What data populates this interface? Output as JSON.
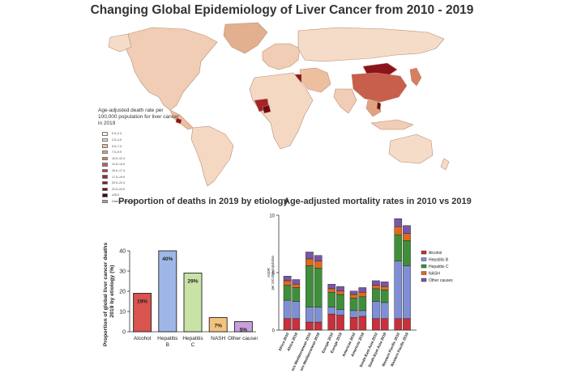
{
  "title": "Changing Global Epidemiology of Liver Cancer from 2010 - 2019",
  "map": {
    "legend_title": "Age-adjusted death rate per 100,000 population for liver cancer in 2019",
    "legend": [
      {
        "label": "0.0–2.4",
        "color": "#fbeee4"
      },
      {
        "label": "2.5–4.9",
        "color": "#f5d8c2"
      },
      {
        "label": "5.0–7.4",
        "color": "#eebf9f"
      },
      {
        "label": "7.5–9.9",
        "color": "#e3a27f"
      },
      {
        "label": "10.0–12.4",
        "color": "#d77f63"
      },
      {
        "label": "12.5–14.9",
        "color": "#c85e4c"
      },
      {
        "label": "15.0–17.4",
        "color": "#b83c38"
      },
      {
        "label": "17.5–19.9",
        "color": "#a32527"
      },
      {
        "label": "20.0–22.4",
        "color": "#8b141b"
      },
      {
        "label": "22.5–24.9",
        "color": "#6f0c12"
      },
      {
        "label": "≥25.0",
        "color": "#4a050a"
      },
      {
        "label": "Data not available",
        "color": "#9ea89c"
      }
    ]
  },
  "panel_titles": {
    "bar": "Proportion of deaths in 2019 by etiology",
    "stack": "Age-adjusted mortality rates in 2010 vs 2019"
  },
  "chart_data": [
    {
      "type": "bar",
      "categories": [
        "Alcohol",
        "Hepatitis B",
        "Hepatitis C",
        "NASH",
        "Other causes"
      ],
      "values": [
        19,
        40,
        29,
        7,
        5
      ],
      "value_labels": [
        "19%",
        "40%",
        "29%",
        "7%",
        "5%"
      ],
      "colors": [
        "#d9534f",
        "#9fb7e8",
        "#c8e3a5",
        "#f2c37e",
        "#c99fdc"
      ],
      "ylabel": "Proportion of global liver cancer deaths in 2019 by etiology (%)",
      "ylim": [
        0,
        40
      ],
      "yticks": [
        0,
        10,
        20,
        30,
        40
      ],
      "grid": false
    },
    {
      "type": "bar",
      "stacked": true,
      "categories": [
        "Africa 2010",
        "Africa 2019",
        "Eastern Mediterranean 2010",
        "Eastern Mediterranean 2019",
        "Europe 2010",
        "Europe 2019",
        "Americas 2010",
        "Americas 2019",
        "South-East Asia 2010",
        "South-East Asia 2019",
        "Western Pacific 2010",
        "Western Pacific 2019"
      ],
      "series": [
        {
          "name": "Alcohol",
          "color": "#c8303a",
          "values": [
            1.0,
            1.0,
            0.7,
            0.7,
            1.4,
            1.3,
            1.1,
            1.2,
            1.0,
            1.0,
            1.0,
            1.0
          ]
        },
        {
          "name": "Hepatitis B",
          "color": "#7f8fd6",
          "values": [
            1.6,
            1.5,
            1.3,
            1.3,
            0.6,
            0.5,
            0.6,
            0.5,
            1.5,
            1.4,
            5.0,
            4.6
          ]
        },
        {
          "name": "Hepatitis C",
          "color": "#3f8f3a",
          "values": [
            1.3,
            1.2,
            3.6,
            3.4,
            1.3,
            1.3,
            1.1,
            1.2,
            1.1,
            1.1,
            2.3,
            2.2
          ]
        },
        {
          "name": "NASH",
          "color": "#e06a1c",
          "values": [
            0.4,
            0.3,
            0.6,
            0.6,
            0.3,
            0.3,
            0.3,
            0.4,
            0.3,
            0.3,
            0.7,
            0.6
          ]
        },
        {
          "name": "Other causes",
          "color": "#7a55a8",
          "values": [
            0.4,
            0.4,
            0.6,
            0.5,
            0.4,
            0.4,
            0.3,
            0.4,
            0.4,
            0.4,
            0.7,
            0.7
          ]
        }
      ],
      "ylabel": "ASDR per 100,000 population",
      "ylim": [
        0,
        10
      ],
      "yticks": [
        0,
        5,
        10
      ],
      "legend_position": "right",
      "grid": false
    }
  ]
}
